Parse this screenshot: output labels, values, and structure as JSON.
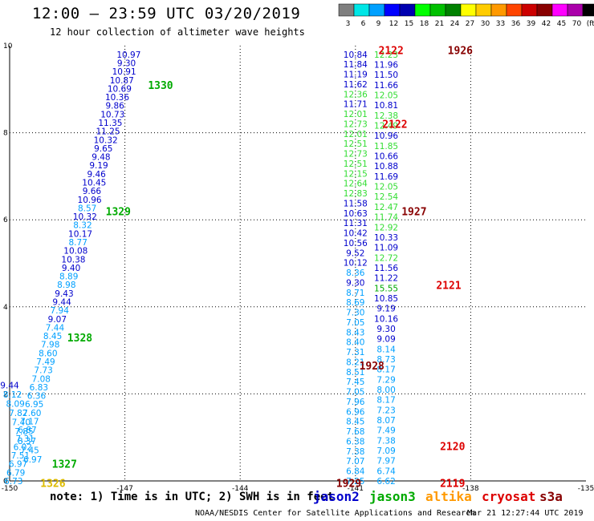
{
  "header": {
    "title": "12:00 – 23:59 UTC 03/20/2019",
    "subtitle": "12 hour collection of altimeter wave heights"
  },
  "colorbar": {
    "labels": [
      "3",
      "6",
      "9",
      "12",
      "15",
      "18",
      "21",
      "24",
      "27",
      "30",
      "33",
      "36",
      "39",
      "42",
      "45",
      "70",
      "(ft)"
    ],
    "colors": [
      "#7f7f7f",
      "#00e6e6",
      "#00a0ff",
      "#0000ff",
      "#0000b0",
      "#00ff00",
      "#00c000",
      "#008000",
      "#ffff00",
      "#ffcc00",
      "#ff9900",
      "#ff4400",
      "#cc0000",
      "#880000",
      "#ff00ff",
      "#aa00aa",
      "#000000"
    ]
  },
  "legend": {
    "jason2": "jason2",
    "jason3": "jason3",
    "altika": "altika",
    "cryosat": "cryosat",
    "s3a": "s3a"
  },
  "note": "note:  1) Time is in UTC; 2) SWH is in feet",
  "footer": {
    "left": "NOAA/NESDIS Center for Satellite Applications and Research",
    "right": "Mar 21 12:27:44 UTC 2019"
  },
  "chart_data": {
    "type": "scatter",
    "xlim": [
      -150,
      -135
    ],
    "ylim": [
      0,
      10
    ],
    "x_ticks": [
      "-150",
      "-147",
      "-144",
      "-141",
      "-138",
      "-135"
    ],
    "y_ticks": [
      "0",
      "2",
      "4",
      "6",
      "8",
      "10"
    ],
    "colors": {
      "cyan": "#00a0ff",
      "blue": "#0000cc",
      "lightgreen": "#33dd33",
      "green": "#00aa00",
      "dark": "#880000",
      "red": "#dd0000",
      "yellow": "#ddbb00"
    },
    "tracks": [
      {
        "x0": -146.9,
        "y0": 9.8,
        "x1": -149.9,
        "y1": 0.0,
        "values": [
          [
            "10.97",
            "blue"
          ],
          [
            "9.30",
            "blue"
          ],
          [
            "10.91",
            "blue"
          ],
          [
            "10.87",
            "blue"
          ],
          [
            "10.69",
            "blue"
          ],
          [
            "10.36",
            "blue"
          ],
          [
            "9.86",
            "blue"
          ],
          [
            "10.73",
            "blue"
          ],
          [
            "11.35",
            "blue"
          ],
          [
            "11.25",
            "blue"
          ],
          [
            "10.32",
            "blue"
          ],
          [
            "9.65",
            "blue"
          ],
          [
            "9.48",
            "blue"
          ],
          [
            "9.19",
            "blue"
          ],
          [
            "9.46",
            "blue"
          ],
          [
            "10.45",
            "blue"
          ],
          [
            "9.66",
            "blue"
          ],
          [
            "10.96",
            "blue"
          ],
          [
            "8.57",
            "cyan"
          ],
          [
            "10.32",
            "blue"
          ],
          [
            "8.32",
            "cyan"
          ],
          [
            "10.17",
            "blue"
          ],
          [
            "8.77",
            "cyan"
          ],
          [
            "10.08",
            "blue"
          ],
          [
            "10.38",
            "blue"
          ],
          [
            "9.40",
            "blue"
          ],
          [
            "8.89",
            "cyan"
          ],
          [
            "8.98",
            "cyan"
          ],
          [
            "9.43",
            "blue"
          ],
          [
            "9.44",
            "blue"
          ],
          [
            "7.94",
            "cyan"
          ],
          [
            "9.07",
            "blue"
          ],
          [
            "7.44",
            "cyan"
          ],
          [
            "8.45",
            "cyan"
          ],
          [
            "7.98",
            "cyan"
          ],
          [
            "8.60",
            "cyan"
          ],
          [
            "7.49",
            "cyan"
          ],
          [
            "7.73",
            "cyan"
          ],
          [
            "7.08",
            "cyan"
          ],
          [
            "6.83",
            "cyan"
          ],
          [
            "6.36",
            "cyan"
          ],
          [
            "6.95",
            "cyan"
          ],
          [
            "7.60",
            "cyan"
          ],
          [
            "7.17",
            "cyan"
          ],
          [
            "6.87",
            "cyan"
          ],
          [
            "7.31",
            "cyan"
          ],
          [
            "6.02",
            "cyan"
          ],
          [
            "7.51",
            "cyan"
          ],
          [
            "6.97",
            "cyan"
          ],
          [
            "6.79",
            "cyan"
          ],
          [
            "6.73",
            "cyan"
          ]
        ]
      },
      {
        "x0": -150.0,
        "y0": 2.2,
        "x1": -149.4,
        "y1": 0.5,
        "values": [
          [
            "9.44",
            "blue"
          ],
          [
            "8.12",
            "cyan"
          ],
          [
            "8.09",
            "cyan"
          ],
          [
            "7.82",
            "cyan"
          ],
          [
            "7.40",
            "cyan"
          ],
          [
            "7.85",
            "cyan"
          ],
          [
            "8.37",
            "cyan"
          ],
          [
            "7.45",
            "cyan"
          ],
          [
            "6.97",
            "cyan"
          ]
        ]
      },
      {
        "x0": -141.0,
        "y0": 9.8,
        "x1": -141.0,
        "y1": 0.0,
        "values": [
          [
            "10.84",
            "blue"
          ],
          [
            "11.84",
            "blue"
          ],
          [
            "11.19",
            "blue"
          ],
          [
            "11.62",
            "blue"
          ],
          [
            "12.36",
            "lightgreen"
          ],
          [
            "11.71",
            "blue"
          ],
          [
            "12.01",
            "lightgreen"
          ],
          [
            "12.73",
            "lightgreen"
          ],
          [
            "12.01",
            "lightgreen"
          ],
          [
            "12.51",
            "lightgreen"
          ],
          [
            "12.73",
            "lightgreen"
          ],
          [
            "12.51",
            "lightgreen"
          ],
          [
            "12.15",
            "lightgreen"
          ],
          [
            "12.64",
            "lightgreen"
          ],
          [
            "12.83",
            "lightgreen"
          ],
          [
            "11.58",
            "blue"
          ],
          [
            "10.63",
            "blue"
          ],
          [
            "11.31",
            "blue"
          ],
          [
            "10.42",
            "blue"
          ],
          [
            "10.56",
            "blue"
          ],
          [
            "9.52",
            "blue"
          ],
          [
            "10.12",
            "blue"
          ],
          [
            "8.36",
            "cyan"
          ],
          [
            "9.30",
            "blue"
          ],
          [
            "8.71",
            "cyan"
          ],
          [
            "8.69",
            "cyan"
          ],
          [
            "7.30",
            "cyan"
          ],
          [
            "7.05",
            "cyan"
          ],
          [
            "8.43",
            "cyan"
          ],
          [
            "8.40",
            "cyan"
          ],
          [
            "7.31",
            "cyan"
          ],
          [
            "8.21",
            "cyan"
          ],
          [
            "8.51",
            "cyan"
          ],
          [
            "7.45",
            "cyan"
          ],
          [
            "7.05",
            "cyan"
          ],
          [
            "7.96",
            "cyan"
          ],
          [
            "6.96",
            "cyan"
          ],
          [
            "8.45",
            "cyan"
          ],
          [
            "7.68",
            "cyan"
          ],
          [
            "6.38",
            "cyan"
          ],
          [
            "7.38",
            "cyan"
          ],
          [
            "7.07",
            "cyan"
          ],
          [
            "6.84",
            "cyan"
          ],
          [
            "7.25",
            "cyan"
          ]
        ]
      },
      {
        "x0": -140.2,
        "y0": 9.8,
        "x1": -140.2,
        "y1": 0.0,
        "values": [
          [
            "12.23",
            "lightgreen"
          ],
          [
            "11.96",
            "blue"
          ],
          [
            "11.50",
            "blue"
          ],
          [
            "11.66",
            "blue"
          ],
          [
            "12.05",
            "lightgreen"
          ],
          [
            "10.81",
            "blue"
          ],
          [
            "12.38",
            "lightgreen"
          ],
          [
            "12.49",
            "lightgreen"
          ],
          [
            "10.96",
            "blue"
          ],
          [
            "11.85",
            "lightgreen"
          ],
          [
            "10.66",
            "blue"
          ],
          [
            "10.88",
            "blue"
          ],
          [
            "11.69",
            "blue"
          ],
          [
            "12.05",
            "lightgreen"
          ],
          [
            "12.54",
            "lightgreen"
          ],
          [
            "12.47",
            "lightgreen"
          ],
          [
            "11.74",
            "lightgreen"
          ],
          [
            "12.92",
            "lightgreen"
          ],
          [
            "10.33",
            "blue"
          ],
          [
            "11.09",
            "blue"
          ],
          [
            "12.72",
            "lightgreen"
          ],
          [
            "11.56",
            "blue"
          ],
          [
            "11.22",
            "blue"
          ],
          [
            "15.55",
            "green"
          ],
          [
            "10.85",
            "blue"
          ],
          [
            "9.19",
            "blue"
          ],
          [
            "10.16",
            "blue"
          ],
          [
            "9.30",
            "blue"
          ],
          [
            "9.09",
            "blue"
          ],
          [
            "8.14",
            "cyan"
          ],
          [
            "8.73",
            "cyan"
          ],
          [
            "8.17",
            "cyan"
          ],
          [
            "7.29",
            "cyan"
          ],
          [
            "8.00",
            "cyan"
          ],
          [
            "8.17",
            "cyan"
          ],
          [
            "7.23",
            "cyan"
          ],
          [
            "8.07",
            "cyan"
          ],
          [
            "7.49",
            "cyan"
          ],
          [
            "7.38",
            "cyan"
          ],
          [
            "7.09",
            "cyan"
          ],
          [
            "7.97",
            "cyan"
          ],
          [
            "6.74",
            "cyan"
          ],
          [
            "6.62",
            "cyan"
          ]
        ]
      }
    ],
    "time_labels": [
      {
        "text": "1330",
        "x": -146.4,
        "y": 9.1,
        "color": "green"
      },
      {
        "text": "1329",
        "x": -147.5,
        "y": 6.2,
        "color": "green"
      },
      {
        "text": "1328",
        "x": -148.5,
        "y": 3.3,
        "color": "green"
      },
      {
        "text": "1327",
        "x": -148.9,
        "y": 0.4,
        "color": "green"
      },
      {
        "text": "1326",
        "x": -149.2,
        "y": -0.05,
        "color": "yellow"
      },
      {
        "text": "2122",
        "x": -140.4,
        "y": 9.9,
        "color": "red"
      },
      {
        "text": "1926",
        "x": -138.6,
        "y": 9.9,
        "color": "dark"
      },
      {
        "text": "2122",
        "x": -140.3,
        "y": 8.2,
        "color": "red"
      },
      {
        "text": "1927",
        "x": -139.8,
        "y": 6.2,
        "color": "dark"
      },
      {
        "text": "2121",
        "x": -138.9,
        "y": 4.5,
        "color": "red"
      },
      {
        "text": "1928",
        "x": -140.9,
        "y": 2.65,
        "color": "dark"
      },
      {
        "text": "2120",
        "x": -138.8,
        "y": 0.8,
        "color": "red"
      },
      {
        "text": "1929",
        "x": -141.5,
        "y": -0.05,
        "color": "dark"
      },
      {
        "text": "2119",
        "x": -138.8,
        "y": -0.05,
        "color": "red"
      }
    ]
  }
}
